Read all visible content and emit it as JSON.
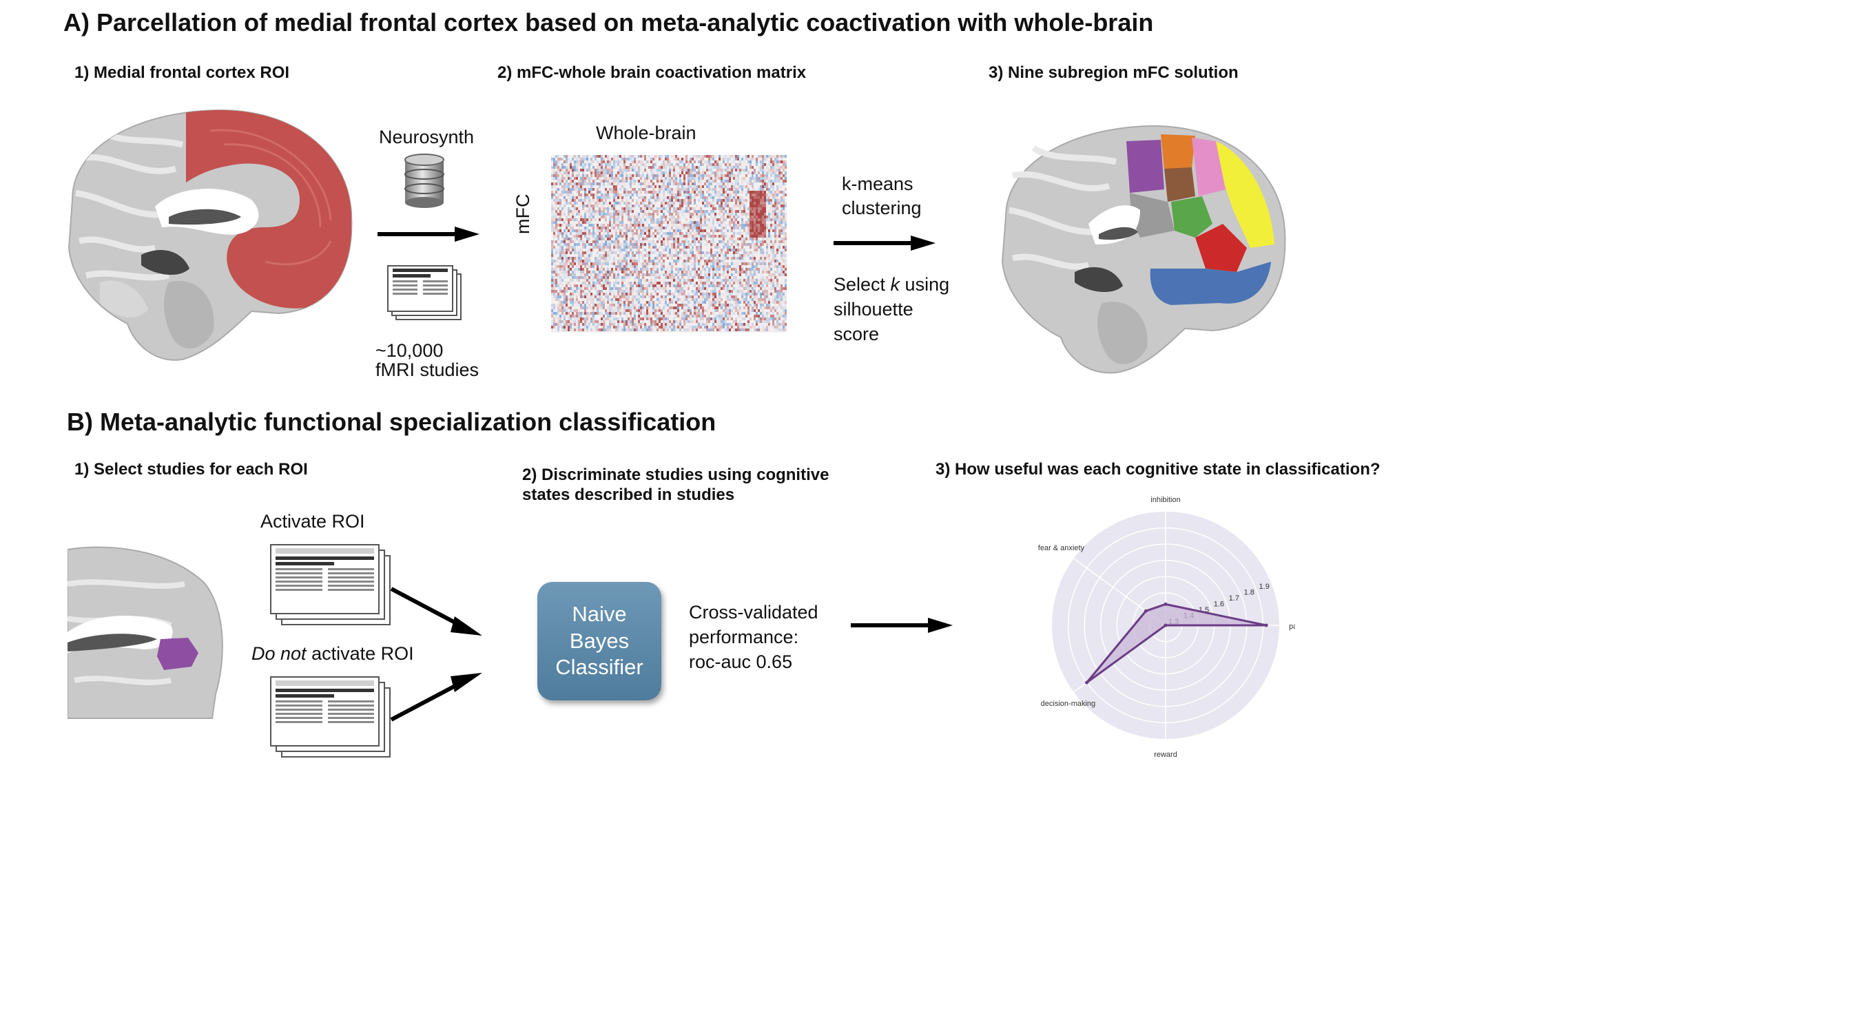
{
  "section_a": {
    "title": "A) Parcellation of medial frontal cortex based on meta-analytic coactivation with whole-brain",
    "step1": "1) Medial frontal cortex ROI",
    "step2": "2) mFC-whole brain coactivation matrix",
    "step3": "3) Nine subregion mFC solution",
    "neurosynth": "Neurosynth",
    "studies_line1": "~10,000",
    "studies_line2": "fMRI studies",
    "matrix_col_label": "Whole-brain",
    "matrix_row_label": "mFC",
    "kmeans_line1": "k-means",
    "kmeans_line2": "clustering",
    "select_pre": "Select ",
    "select_k": "k",
    "select_post": " using",
    "silhouette": "silhouette",
    "score": "score"
  },
  "section_b": {
    "title": "B) Meta-analytic functional specialization classification",
    "step1": "1) Select studies for each ROI",
    "step2_line1": "2) Discriminate studies using cognitive",
    "step2_line2": "states described in studies",
    "step3": "3) How useful was each cognitive state in classification?",
    "activate": "Activate ROI",
    "do_not": "Do not",
    "not_activate_rest": " activate ROI",
    "classifier_line1": "Naive",
    "classifier_line2": "Bayes",
    "classifier_line3": "Classifier",
    "perf_line1": "Cross-validated",
    "perf_line2": "performance:",
    "perf_line3": "roc-auc 0.65"
  },
  "colors": {
    "roi_red": "#c2514f",
    "roi_purple": "#8e4fa3",
    "radar_line": "#6a3d85",
    "radar_fill": "#c9b6d8",
    "radar_bg": "#e8e6f0",
    "classifier_blue": "#5b87a8"
  },
  "chart_data": {
    "type": "radar",
    "axes": [
      "inhibition",
      "pain",
      "reward",
      "decision-making",
      "fear & anxiety"
    ],
    "values": [
      1.43,
      1.92,
      1.3,
      1.9,
      1.45
    ],
    "ticks": [
      "1.3",
      "1.4",
      "1.5",
      "1.6",
      "1.7",
      "1.8",
      "1.9"
    ],
    "range": [
      1.3,
      2.0
    ]
  }
}
